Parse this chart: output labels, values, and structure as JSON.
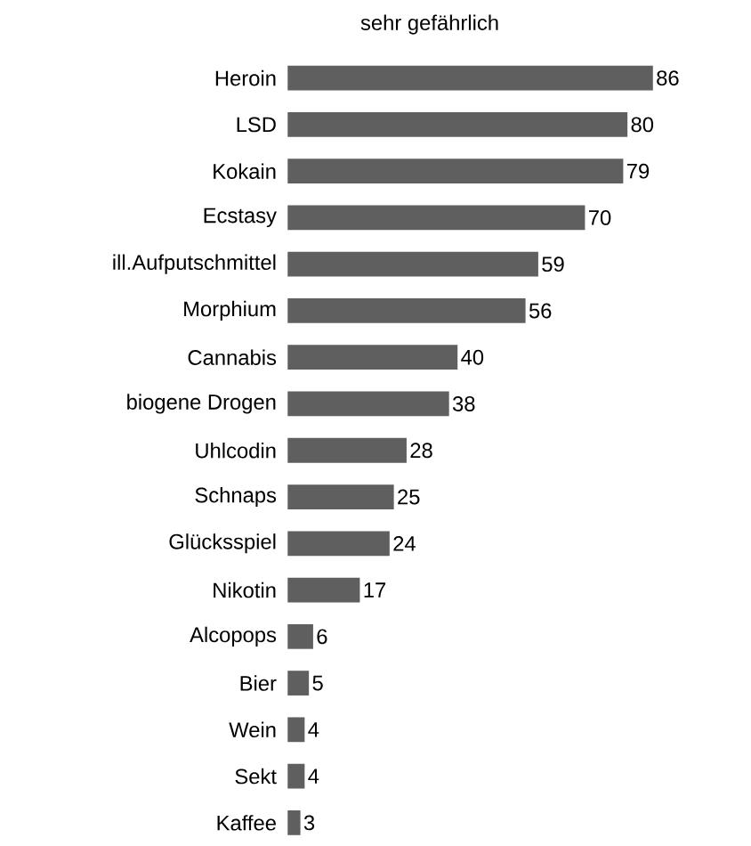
{
  "chart_data": {
    "type": "bar",
    "orientation": "horizontal",
    "title": "sehr gefährlich",
    "categories": [
      "Heroin",
      "LSD",
      "Kokain",
      "Ecstasy",
      "ill.Aufputschmittel",
      "Morphium",
      "Cannabis",
      "biogene Drogen",
      "Uhlcodin",
      "Schnaps",
      "Glücksspiel",
      "Nikotin",
      "Alcopops",
      "Bier",
      "Wein",
      "Sekt",
      "Kaffee"
    ],
    "values": [
      86,
      80,
      79,
      70,
      59,
      56,
      40,
      38,
      28,
      25,
      24,
      17,
      6,
      5,
      4,
      4,
      3
    ],
    "color": "#5f5f5f",
    "data_labels": true
  }
}
